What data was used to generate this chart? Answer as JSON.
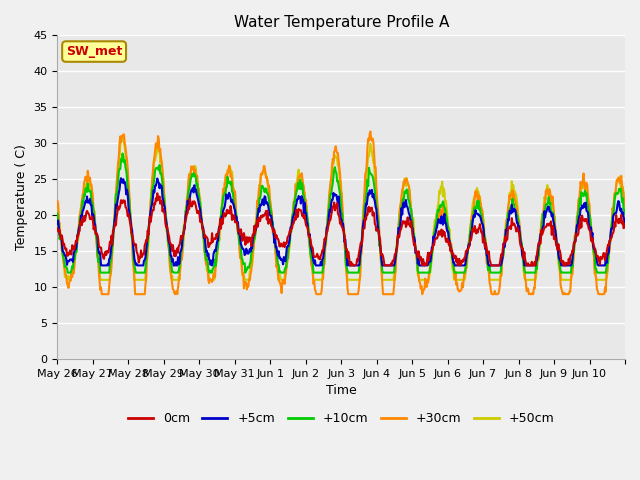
{
  "title": "Water Temperature Profile A",
  "xlabel": "Time",
  "ylabel": "Temperature ( C)",
  "ylim": [
    0,
    45
  ],
  "yticks": [
    0,
    5,
    10,
    15,
    20,
    25,
    30,
    35,
    40,
    45
  ],
  "legend_labels": [
    "0cm",
    "+5cm",
    "+10cm",
    "+30cm",
    "+50cm"
  ],
  "legend_colors": [
    "#cc0000",
    "#0000cc",
    "#00cc00",
    "#ff8800",
    "#cccc00"
  ],
  "line_widths": [
    1.5,
    1.5,
    1.5,
    1.5,
    1.5
  ],
  "annotation_text": "SW_met",
  "annotation_color": "#cc0000",
  "annotation_bg": "#ffff99",
  "annotation_border": "#aa8800",
  "background_inner": "#e8e8e8",
  "background_outer": "#f0f0f0",
  "n_days": 16,
  "x_tick_labels": [
    "May 26",
    "May 27",
    "May 28",
    "May 29",
    "May 30",
    "May 31",
    "Jun 1",
    "Jun 2",
    "Jun 3",
    "Jun 4",
    "Jun 5",
    "Jun 6",
    "Jun 7",
    "Jun 8",
    "Jun 9",
    "Jun 10"
  ],
  "title_fontsize": 11,
  "axis_label_fontsize": 9,
  "tick_fontsize": 8
}
